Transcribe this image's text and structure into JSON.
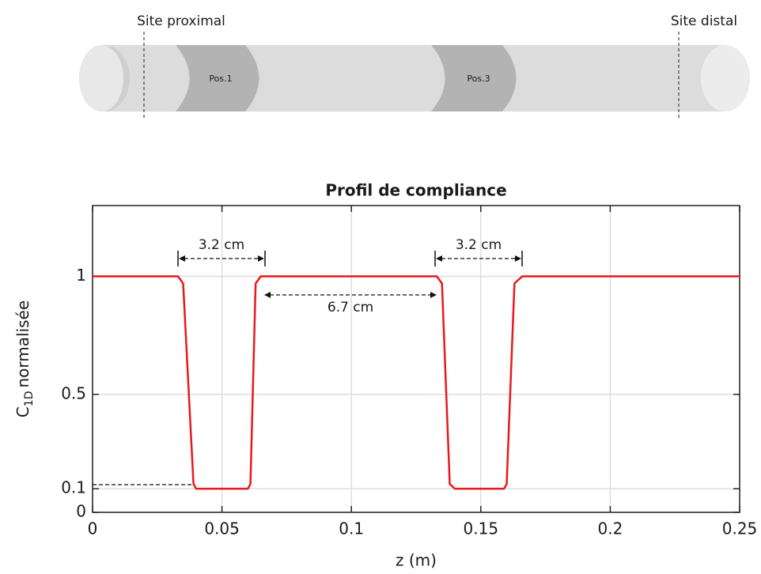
{
  "diagram": {
    "left_site": "Site proximal",
    "right_site": "Site distal",
    "segments": [
      "Pos.1",
      "Pos.3"
    ]
  },
  "chart_data": {
    "type": "line",
    "title": "Profil de compliance",
    "xlabel": "z (m)",
    "ylabel": {
      "symbol": "C",
      "subscript": "1D",
      "text": "normalisée"
    },
    "xlim": [
      0,
      0.25
    ],
    "ylim": [
      0,
      1.3
    ],
    "xticks": [
      0,
      0.05,
      0.1,
      0.15,
      0.2,
      0.25
    ],
    "yticks": [
      0,
      0.1,
      0.5,
      1
    ],
    "grid": true,
    "series": [
      {
        "color": "#e8191c",
        "x": [
          0,
          0.033,
          0.035,
          0.039,
          0.04,
          0.06,
          0.061,
          0.063,
          0.065,
          0.133,
          0.135,
          0.138,
          0.14,
          0.159,
          0.16,
          0.163,
          0.166,
          0.25
        ],
        "values": [
          1,
          1,
          0.97,
          0.12,
          0.1,
          0.1,
          0.12,
          0.97,
          1,
          1,
          0.97,
          0.12,
          0.1,
          0.1,
          0.12,
          0.97,
          1,
          1
        ]
      }
    ],
    "annotations": [
      "3.2 cm",
      "3.2 cm",
      "6.7 cm"
    ]
  }
}
